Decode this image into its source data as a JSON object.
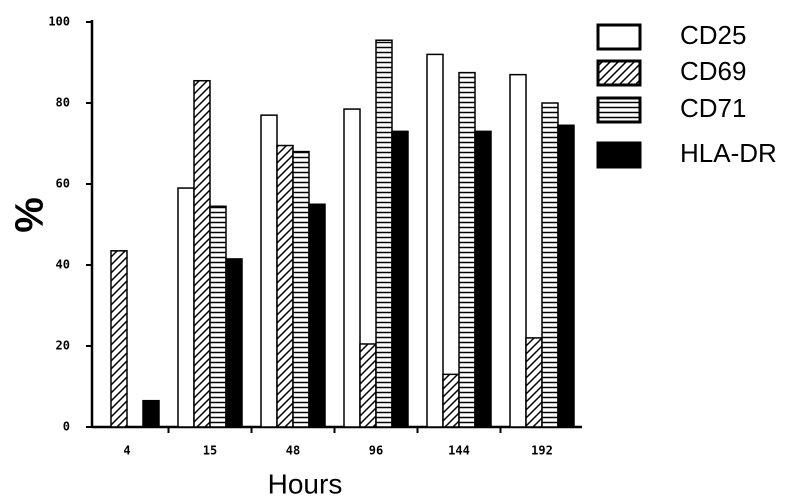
{
  "chart_data": {
    "type": "bar",
    "x_label": "Hours",
    "y_label": "%",
    "categories": [
      "4",
      "15",
      "48",
      "96",
      "144",
      "192"
    ],
    "series": [
      {
        "name": "CD25",
        "color": "#ffffff",
        "pattern": "none",
        "values": [
          null,
          59,
          77,
          78.5,
          92,
          87
        ]
      },
      {
        "name": "CD69",
        "color": "#ffffff",
        "pattern": "diagonal",
        "values": [
          43.5,
          85.5,
          69.5,
          20.5,
          13,
          22
        ]
      },
      {
        "name": "CD71",
        "color": "#ffffff",
        "pattern": "horizontal",
        "values": [
          null,
          54.5,
          68,
          95.5,
          87.5,
          80
        ]
      },
      {
        "name": "HLA-DR",
        "color": "#000000",
        "pattern": "none",
        "values": [
          6.5,
          41.5,
          55,
          73,
          73,
          74.5
        ]
      }
    ],
    "ylim": [
      0,
      100
    ],
    "yticks": [
      0,
      20,
      40,
      60,
      80,
      100
    ]
  }
}
